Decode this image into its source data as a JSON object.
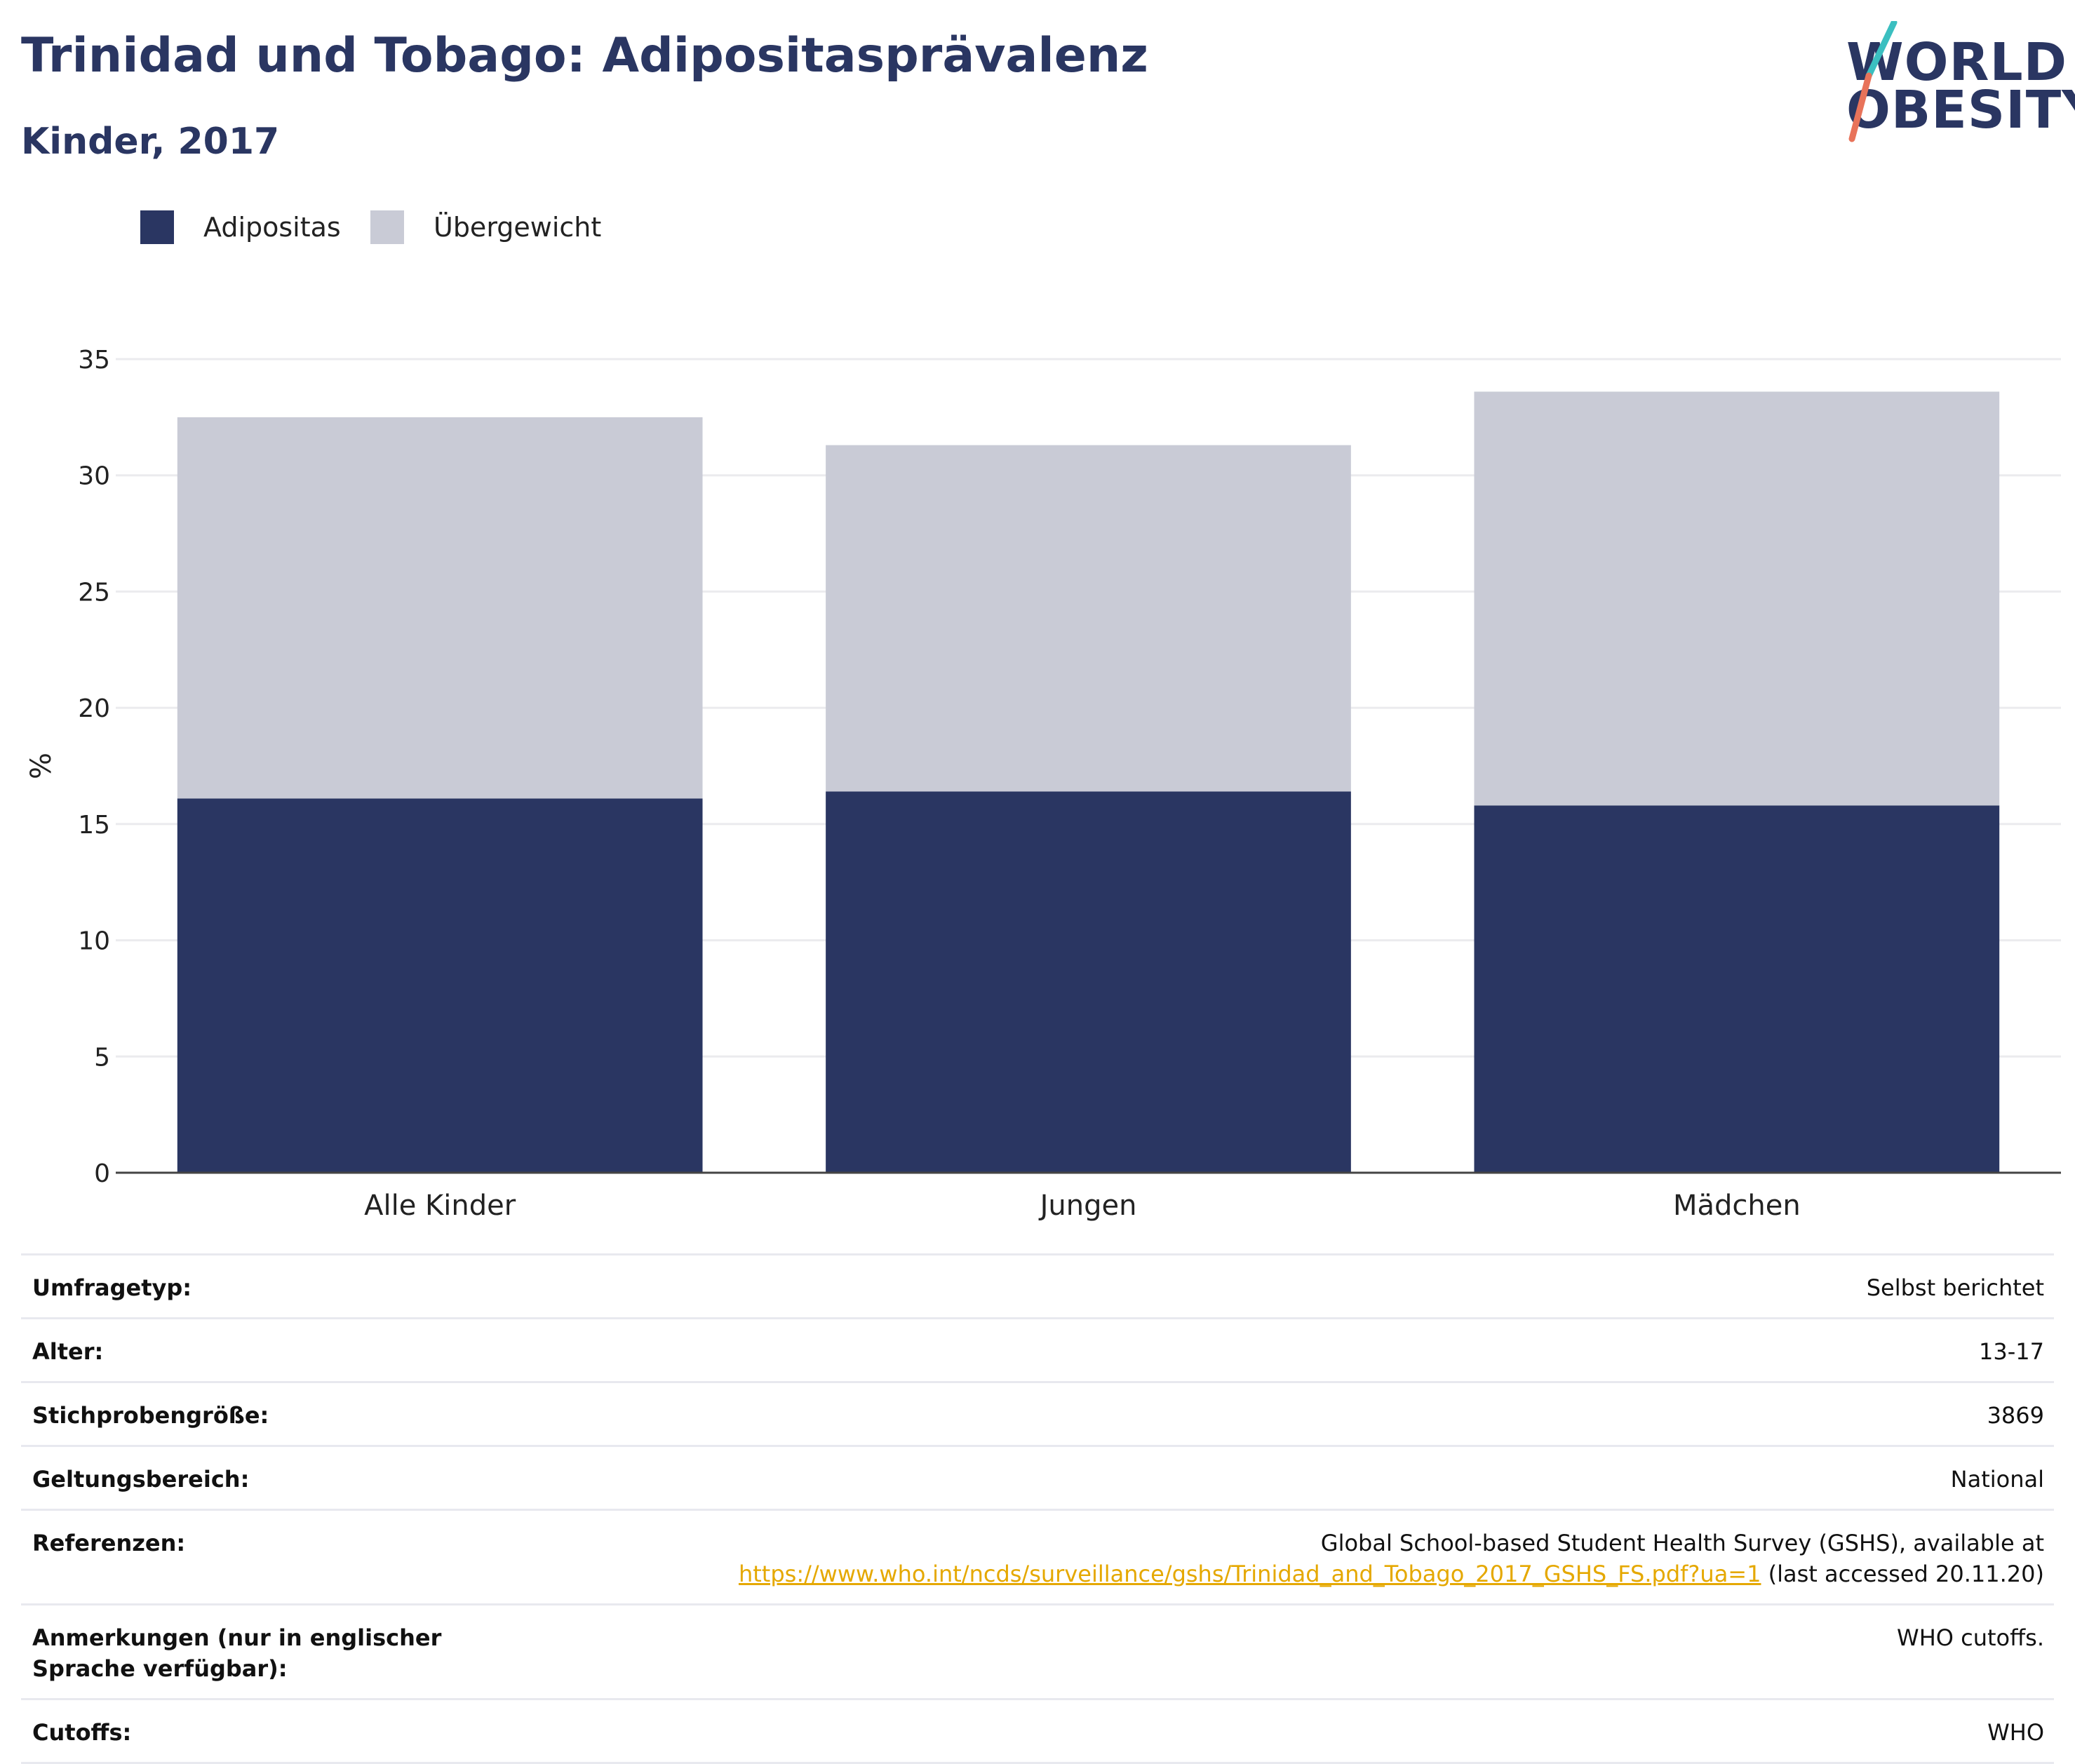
{
  "header": {
    "title": "Trinidad und Tobago: Adipositasprävalenz",
    "subtitle": "Kinder, 2017"
  },
  "logo": {
    "line1": "WORLD",
    "line2": "OBESITY",
    "colors": {
      "text": "#2a3662",
      "slash_top": "#3bbfc0",
      "slash_bottom": "#e8735a"
    }
  },
  "legend": [
    {
      "label": "Adipositas",
      "color": "#2a3662"
    },
    {
      "label": "Übergewicht",
      "color": "#c9cbd6"
    }
  ],
  "chart_data": {
    "type": "bar",
    "stacked": true,
    "categories": [
      "Alle Kinder",
      "Jungen",
      "Mädchen"
    ],
    "series": [
      {
        "name": "Adipositas",
        "values": [
          16.1,
          16.4,
          15.8
        ],
        "color": "#2a3662"
      },
      {
        "name": "Übergewicht",
        "values": [
          16.4,
          14.9,
          17.8
        ],
        "color": "#c9cbd6"
      }
    ],
    "ylabel": "%",
    "ylim": [
      0,
      35
    ],
    "yticks": [
      0,
      5,
      10,
      15,
      20,
      25,
      30,
      35
    ],
    "grid": true,
    "legend_position": "top-left"
  },
  "info_table": [
    {
      "label": "Umfragetyp:",
      "value": "Selbst berichtet"
    },
    {
      "label": "Alter:",
      "value": "13-17"
    },
    {
      "label": "Stichprobengröße:",
      "value": "3869"
    },
    {
      "label": "Geltungsbereich:",
      "value": "National"
    },
    {
      "label": "Referenzen:",
      "value_line1": "Global School-based Student Health Survey (GSHS), available at",
      "link": "https://www.who.int/ncds/surveillance/gshs/Trinidad_and_Tobago_2017_GSHS_FS.pdf?ua=1",
      "value_suffix": " (last accessed 20.11.20)"
    },
    {
      "label": "Anmerkungen (nur in englischer Sprache verfügbar):",
      "value": "WHO cutoffs."
    },
    {
      "label": "Cutoffs:",
      "value": "WHO"
    }
  ]
}
